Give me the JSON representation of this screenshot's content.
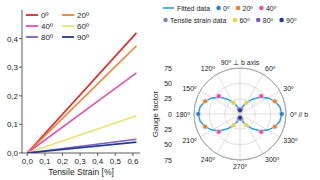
{
  "chart_data": [
    {
      "type": "line",
      "x_label": "Tensile Strain [%]",
      "x": [
        0,
        0.62
      ],
      "xlim": [
        -0.03,
        0.64
      ],
      "xticks": [
        {
          "value": 0,
          "label": "0,0"
        },
        {
          "value": 0.1,
          "label": "0,1"
        },
        {
          "value": 0.2,
          "label": "0,2"
        },
        {
          "value": 0.3,
          "label": "0,3"
        },
        {
          "value": 0.4,
          "label": "0,4"
        },
        {
          "value": 0.5,
          "label": "0,5"
        },
        {
          "value": 0.6,
          "label": "0,6"
        }
      ],
      "ylim": [
        0,
        0.5
      ],
      "yticks": [
        {
          "value": 0,
          "label": "0,0"
        },
        {
          "value": 0.1,
          "label": "0,1"
        },
        {
          "value": 0.2,
          "label": "0,2"
        },
        {
          "value": 0.3,
          "label": "0,3"
        },
        {
          "value": 0.4,
          "label": "0,4"
        }
      ],
      "legend": "top-left",
      "series": [
        {
          "name": "0º",
          "color": "#e0262a",
          "line_style": "solid",
          "values": [
            0,
            0.42
          ]
        },
        {
          "name": "20º",
          "color": "#f07f2a",
          "line_style": "solid",
          "values": [
            0,
            0.375
          ]
        },
        {
          "name": "40º",
          "color": "#e64fb0",
          "line_style": "solid",
          "values": [
            0,
            0.28
          ]
        },
        {
          "name": "60º",
          "color": "#efe070",
          "line_style": "solid",
          "values": [
            0,
            0.13
          ]
        },
        {
          "name": "80º",
          "color": "#7a5cc4",
          "line_style": "solid",
          "values": [
            0,
            0.048
          ]
        },
        {
          "name": "90º",
          "color": "#223a8c",
          "line_style": "solid",
          "values": [
            0,
            0.038
          ]
        }
      ]
    },
    {
      "type": "polar",
      "r_label": "Gauge factor",
      "rlim": [
        0,
        75
      ],
      "rticks": [
        0,
        25,
        50,
        75
      ],
      "theta_ticks": [
        {
          "value": 0,
          "label": "0º // b"
        },
        {
          "value": 30,
          "label": "30º"
        },
        {
          "value": 60,
          "label": "60º"
        },
        {
          "value": 90,
          "label": "90º ⊥ b axis"
        },
        {
          "value": 120,
          "label": "120º"
        },
        {
          "value": 150,
          "label": "150º"
        },
        {
          "value": 180,
          "label": "180º"
        },
        {
          "value": 210,
          "label": "210º"
        },
        {
          "value": 240,
          "label": "240º"
        },
        {
          "value": 270,
          "label": "270º"
        },
        {
          "value": 300,
          "label": "300º"
        },
        {
          "value": 330,
          "label": "330º"
        }
      ],
      "grid": true,
      "legend": "top",
      "legend_title": "Tensile strain data",
      "series": [
        {
          "name": "Fitted data",
          "type": "line",
          "color": "#2a9fd9",
          "line_style": "solid",
          "theta": [
            0,
            10,
            20,
            30,
            40,
            50,
            60,
            70,
            80,
            90,
            100,
            110,
            120,
            130,
            140,
            150,
            160,
            170,
            180,
            190,
            200,
            210,
            220,
            230,
            240,
            250,
            260,
            270,
            280,
            290,
            300,
            310,
            320,
            330,
            340,
            350,
            360
          ],
          "values": [
            68,
            66.1,
            60.7,
            52.5,
            42.4,
            31.6,
            21.5,
            13.3,
            7.9,
            6,
            7.9,
            13.3,
            21.5,
            31.6,
            42.4,
            52.5,
            60.7,
            66.1,
            68,
            66.1,
            60.7,
            52.5,
            42.4,
            31.6,
            21.5,
            13.3,
            7.9,
            6,
            7.9,
            13.3,
            21.5,
            31.6,
            42.4,
            52.5,
            60.7,
            66.1,
            68
          ]
        },
        {
          "name": "0º",
          "type": "scatter",
          "marker": "circle",
          "color": "#2a7fd0",
          "theta": [
            0,
            180
          ],
          "values": [
            68,
            68
          ]
        },
        {
          "name": "20º",
          "type": "scatter",
          "marker": "circle",
          "color": "#f07f2a",
          "theta": [
            20,
            160,
            200,
            340
          ],
          "values": [
            60.5,
            60.5,
            60.5,
            60.5
          ]
        },
        {
          "name": "40º",
          "type": "scatter",
          "marker": "circle",
          "color": "#e64fb0",
          "theta": [
            40,
            140,
            220,
            320
          ],
          "values": [
            45.2,
            45.2,
            45.2,
            45.2
          ]
        },
        {
          "name": "60º",
          "type": "scatter",
          "marker": "circle",
          "color": "#e8d24a",
          "theta": [
            60,
            120,
            240,
            300
          ],
          "values": [
            21,
            21,
            21,
            21
          ]
        },
        {
          "name": "80º",
          "type": "scatter",
          "marker": "circle",
          "color": "#7a5cc4",
          "theta": [
            80,
            100,
            260,
            280
          ],
          "values": [
            7.7,
            7.7,
            7.7,
            7.7
          ]
        },
        {
          "name": "90º",
          "type": "scatter",
          "marker": "circle",
          "color": "#223a8c",
          "theta": [
            90,
            270
          ],
          "values": [
            6.1,
            6.1
          ]
        }
      ]
    }
  ]
}
